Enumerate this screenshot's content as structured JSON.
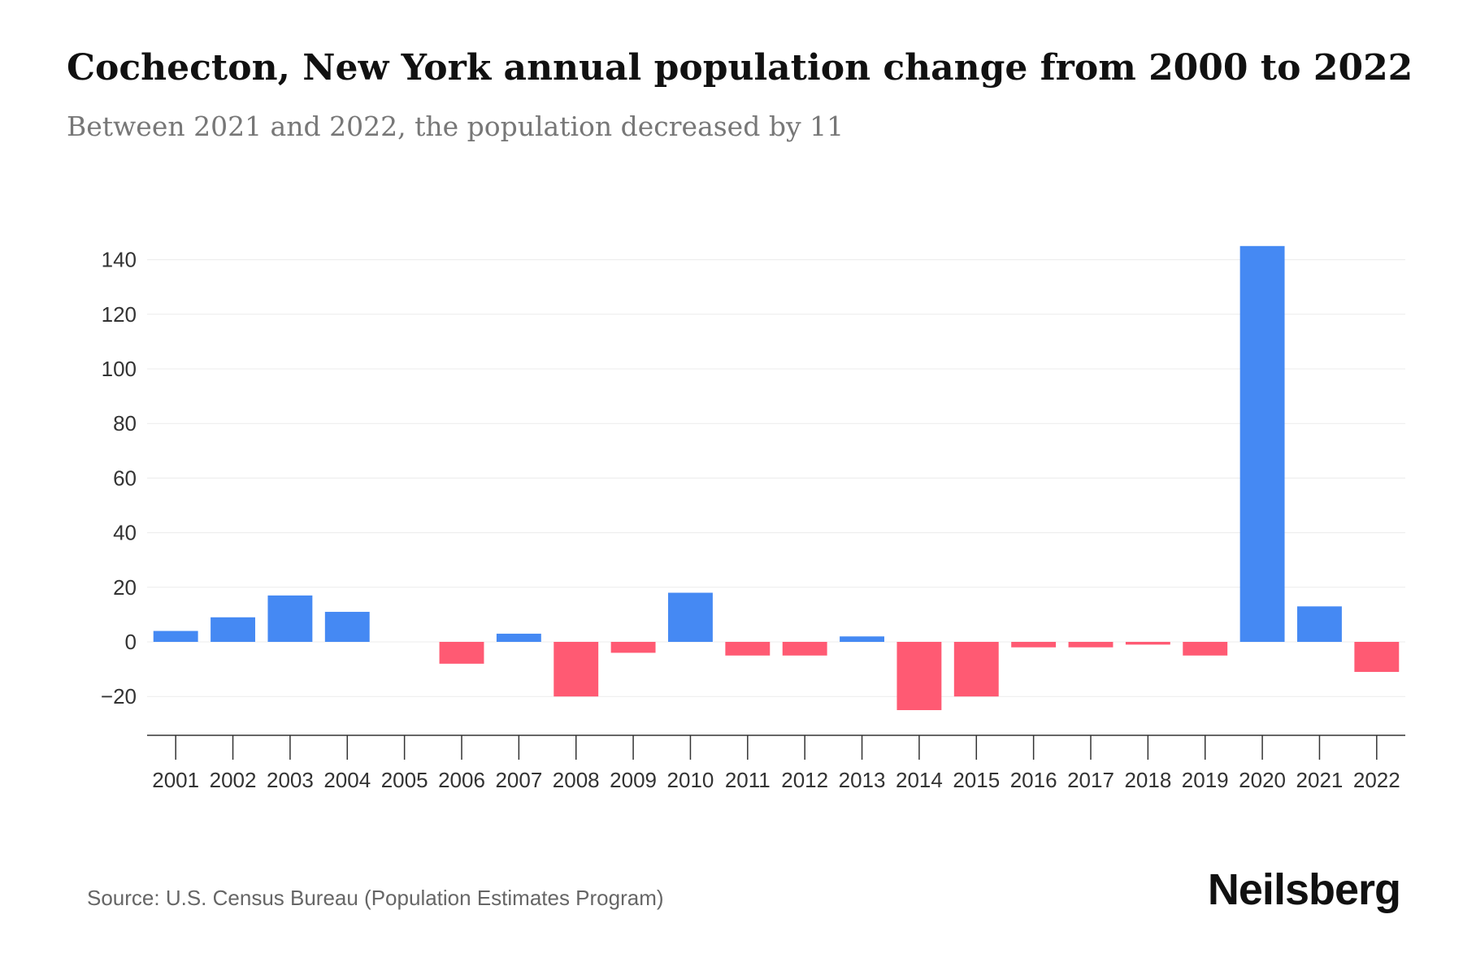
{
  "header": {
    "title": "Cochecton, New York annual population change from 2000 to 2022",
    "subtitle": "Between 2021 and 2022, the population decreased by 11"
  },
  "footer": {
    "source": "Source: U.S. Census Bureau (Population Estimates Program)",
    "brand": "Neilsberg"
  },
  "colors": {
    "increase": "#4589f3",
    "decrease": "#ff5a73",
    "grid": "#ececec",
    "axis": "#333333"
  },
  "chart_data": {
    "type": "bar",
    "categories": [
      "2001",
      "2002",
      "2003",
      "2004",
      "2005",
      "2006",
      "2007",
      "2008",
      "2009",
      "2010",
      "2011",
      "2012",
      "2013",
      "2014",
      "2015",
      "2016",
      "2017",
      "2018",
      "2019",
      "2020",
      "2021",
      "2022"
    ],
    "values": [
      4,
      9,
      17,
      11,
      0,
      -8,
      3,
      -20,
      -4,
      18,
      -5,
      -5,
      2,
      -25,
      -20,
      -2,
      -2,
      -1,
      -5,
      145,
      13,
      -11
    ],
    "yticks": [
      -20,
      0,
      20,
      40,
      60,
      80,
      100,
      120,
      140
    ],
    "ylim": [
      -34,
      145
    ],
    "grid": true,
    "legend": "none"
  }
}
